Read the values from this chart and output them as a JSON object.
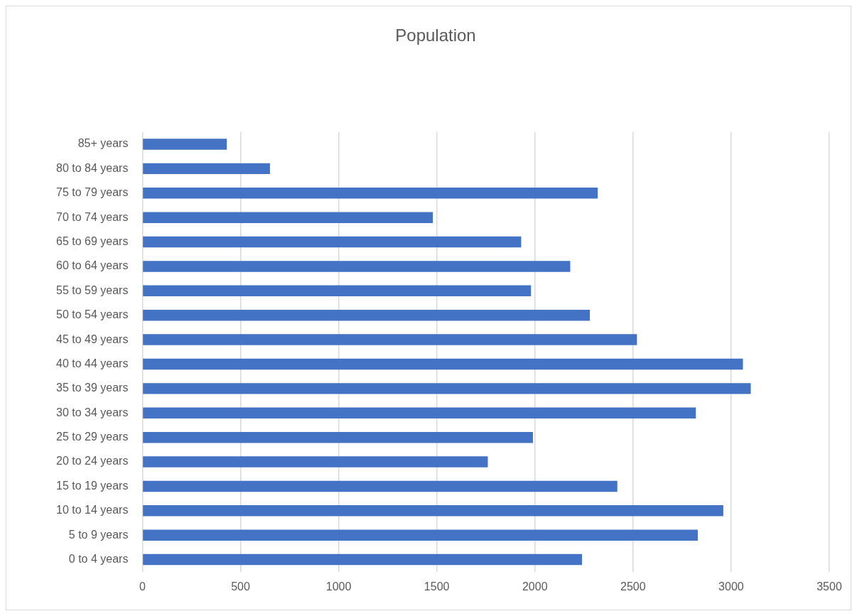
{
  "chart_data": {
    "type": "bar",
    "orientation": "horizontal",
    "title": "Population",
    "categories": [
      "85+ years",
      "80 to 84 years",
      "75 to 79 years",
      "70 to 74 years",
      "65 to 69 years",
      "60 to 64 years",
      "55 to 59 years",
      "50 to 54 years",
      "45 to 49 years",
      "40 to 44 years",
      "35 to 39 years",
      "30 to 34 years",
      "25 to 29 years",
      "20 to 24 years",
      "15 to 19 years",
      "10 to 14 years",
      "5 to 9 years",
      "0 to 4 years"
    ],
    "values": [
      430,
      650,
      2320,
      1480,
      1930,
      2180,
      1980,
      2280,
      2520,
      3060,
      3100,
      2820,
      1990,
      1760,
      2420,
      2960,
      2830,
      2240
    ],
    "color": "#4472c4",
    "xlim": [
      0,
      3500
    ],
    "xticks": [
      0,
      500,
      1000,
      1500,
      2000,
      2500,
      3000,
      3500
    ],
    "grid": "x",
    "legend": false
  }
}
